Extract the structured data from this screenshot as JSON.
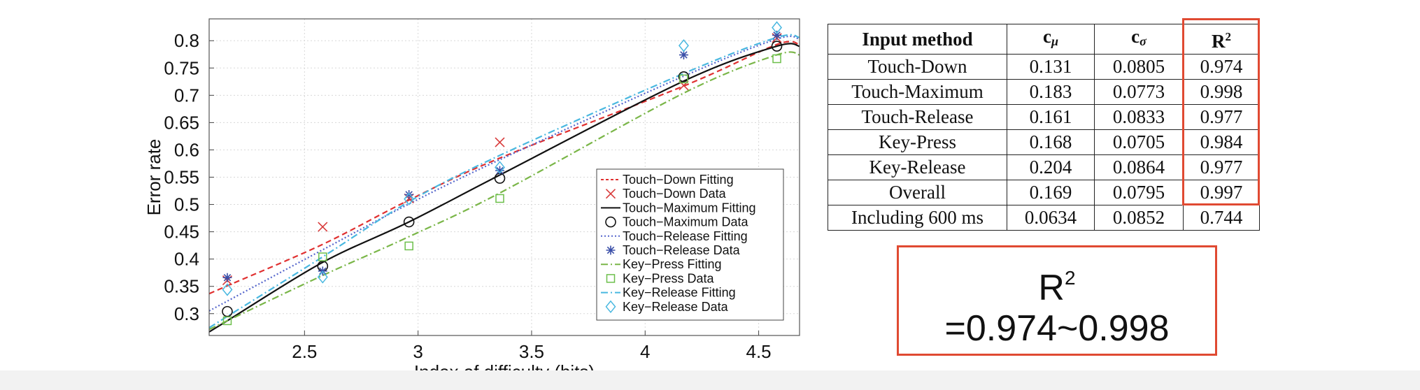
{
  "chart_data": {
    "type": "line",
    "xlabel": "Index of difficulty (bits)",
    "ylabel": "Error rate",
    "xlim": [
      2.08,
      4.68
    ],
    "ylim": [
      0.26,
      0.84
    ],
    "xticks": [
      "2.5",
      "3",
      "3.5",
      "4",
      "4.5"
    ],
    "yticks": [
      "0.3",
      "0.35",
      "0.4",
      "0.45",
      "0.5",
      "0.55",
      "0.6",
      "0.65",
      "0.7",
      "0.75",
      "0.8"
    ],
    "grid": true,
    "legend_position": "lower-right",
    "x": [
      2.16,
      2.58,
      2.96,
      3.36,
      4.17,
      4.58
    ],
    "fitting": {
      "Touch-Down": [
        0.351,
        0.427,
        0.508,
        0.585,
        0.717,
        0.793
      ],
      "Touch-Maximum": [
        0.287,
        0.394,
        0.468,
        0.554,
        0.726,
        0.79
      ],
      "Touch-Release": [
        0.323,
        0.417,
        0.501,
        0.582,
        0.735,
        0.803
      ],
      "Key-Press": [
        0.287,
        0.37,
        0.441,
        0.521,
        0.704,
        0.774
      ],
      "Key-Release": [
        0.295,
        0.404,
        0.505,
        0.59,
        0.74,
        0.806
      ]
    },
    "series": [
      {
        "name": "Touch−Down Fitting",
        "kind": "line",
        "color": "#e03030",
        "dash": "8,5",
        "key": "Touch-Down"
      },
      {
        "name": "Touch−Down Data",
        "kind": "points",
        "marker": "x",
        "color": "#d83a3a",
        "values": [
          0.361,
          0.459,
          0.511,
          0.614,
          0.718,
          0.805
        ]
      },
      {
        "name": "Touch−Maximum Fitting",
        "kind": "line",
        "color": "#111111",
        "dash": "",
        "key": "Touch-Maximum"
      },
      {
        "name": "Touch−Maximum Data",
        "kind": "points",
        "marker": "circle",
        "color": "#111111",
        "values": [
          0.304,
          0.387,
          0.468,
          0.548,
          0.734,
          0.79
        ]
      },
      {
        "name": "Touch−Release Fitting",
        "kind": "line",
        "color": "#5566cc",
        "dash": "2,3",
        "key": "Touch-Release"
      },
      {
        "name": "Touch−Release Data",
        "kind": "points",
        "marker": "star",
        "color": "#3a4fa8",
        "values": [
          0.366,
          0.378,
          0.518,
          0.562,
          0.774,
          0.81
        ]
      },
      {
        "name": "Key−Press Fitting",
        "kind": "line",
        "color": "#7ab648",
        "dash": "10,4,2,4",
        "key": "Key-Press"
      },
      {
        "name": "Key−Press Data",
        "kind": "points",
        "marker": "square",
        "color": "#6cbf4b",
        "values": [
          0.287,
          0.404,
          0.424,
          0.511,
          0.73,
          0.767
        ]
      },
      {
        "name": "Key−Release Fitting",
        "kind": "line",
        "color": "#49b8e0",
        "dash": "10,4,2,4",
        "key": "Key-Release"
      },
      {
        "name": "Key−Release Data",
        "kind": "points",
        "marker": "diamond",
        "color": "#49b8e0",
        "values": [
          0.344,
          0.367,
          0.51,
          0.568,
          0.791,
          0.824
        ]
      }
    ]
  },
  "table": {
    "headers": [
      "Input method",
      "c",
      "c",
      "R"
    ],
    "header_subscripts": [
      "",
      "μ",
      "σ",
      ""
    ],
    "header_superscripts": [
      "",
      "",
      "",
      "2"
    ],
    "rows": [
      [
        "Touch-Down",
        "0.131",
        "0.0805",
        "0.974"
      ],
      [
        "Touch-Maximum",
        "0.183",
        "0.0773",
        "0.998"
      ],
      [
        "Touch-Release",
        "0.161",
        "0.0833",
        "0.977"
      ],
      [
        "Key-Press",
        "0.168",
        "0.0705",
        "0.984"
      ],
      [
        "Key-Release",
        "0.204",
        "0.0864",
        "0.977"
      ],
      [
        "Overall",
        "0.169",
        "0.0795",
        "0.997"
      ],
      [
        "Including 600 ms",
        "0.0634",
        "0.0852",
        "0.744"
      ]
    ]
  },
  "summary": {
    "r_label": "R",
    "r_sup": "2",
    "range_text": "=0.974~0.998"
  },
  "colors": {
    "highlight": "#e04a32"
  }
}
